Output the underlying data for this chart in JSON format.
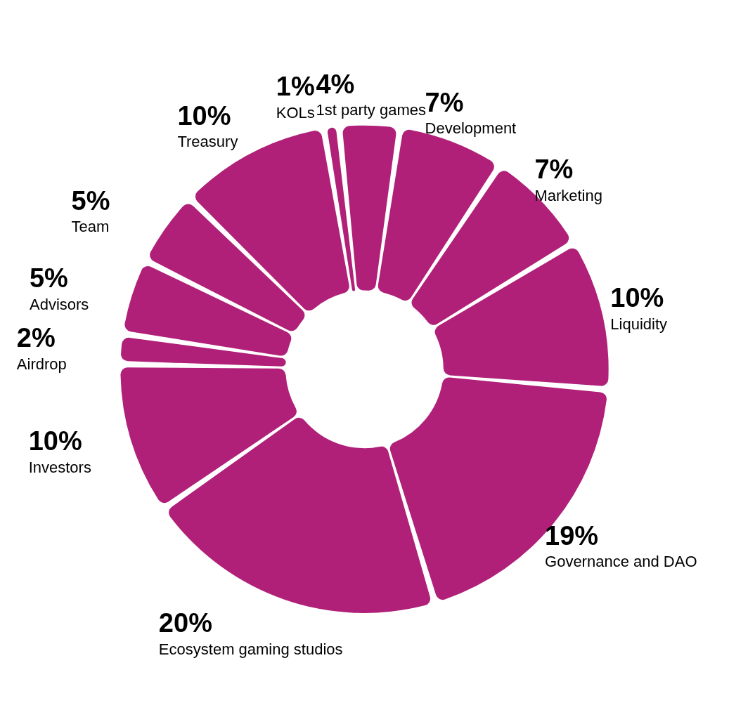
{
  "chart_data": {
    "type": "donut",
    "categories": [
      "1st party games",
      "Development",
      "Marketing",
      "Liquidity",
      "Governance and DAO",
      "Ecosystem gaming studios",
      "Investors",
      "Airdrop",
      "Advisors",
      "Team",
      "Treasury",
      "KOLs"
    ],
    "values": [
      4,
      7,
      7,
      10,
      19,
      20,
      10,
      2,
      5,
      5,
      10,
      1
    ],
    "value_labels": [
      "4%",
      "7%",
      "7%",
      "10%",
      "19%",
      "20%",
      "10%",
      "2%",
      "5%",
      "5%",
      "10%",
      "1%"
    ],
    "color": "#b02078",
    "legend": false
  }
}
